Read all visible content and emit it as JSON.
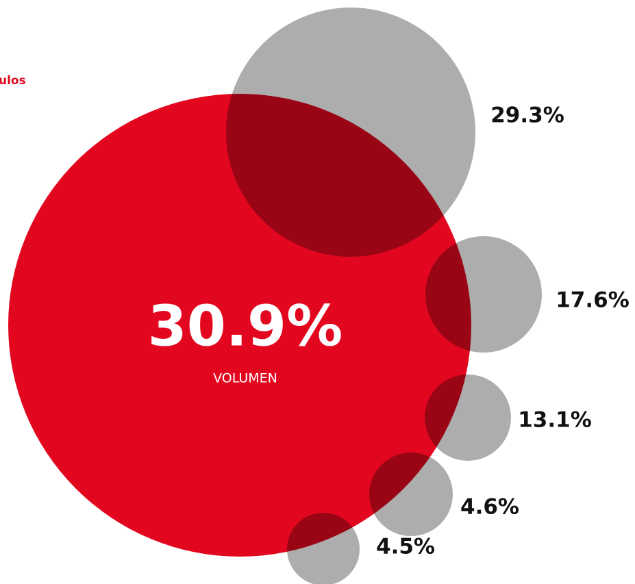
{
  "chart_data": {
    "type": "bubble",
    "title": "ulos",
    "caption": "VOLUMEN",
    "values": [
      30.9,
      29.3,
      17.6,
      13.1,
      4.6,
      4.5
    ],
    "value_labels": [
      "30.9%",
      "29.3%",
      "17.6%",
      "13.1%",
      "4.6%",
      "4.5%"
    ],
    "colors": [
      "#e2071f",
      "#adadad",
      "#adadad",
      "#adadad",
      "#adadad",
      "#adadad"
    ]
  }
}
